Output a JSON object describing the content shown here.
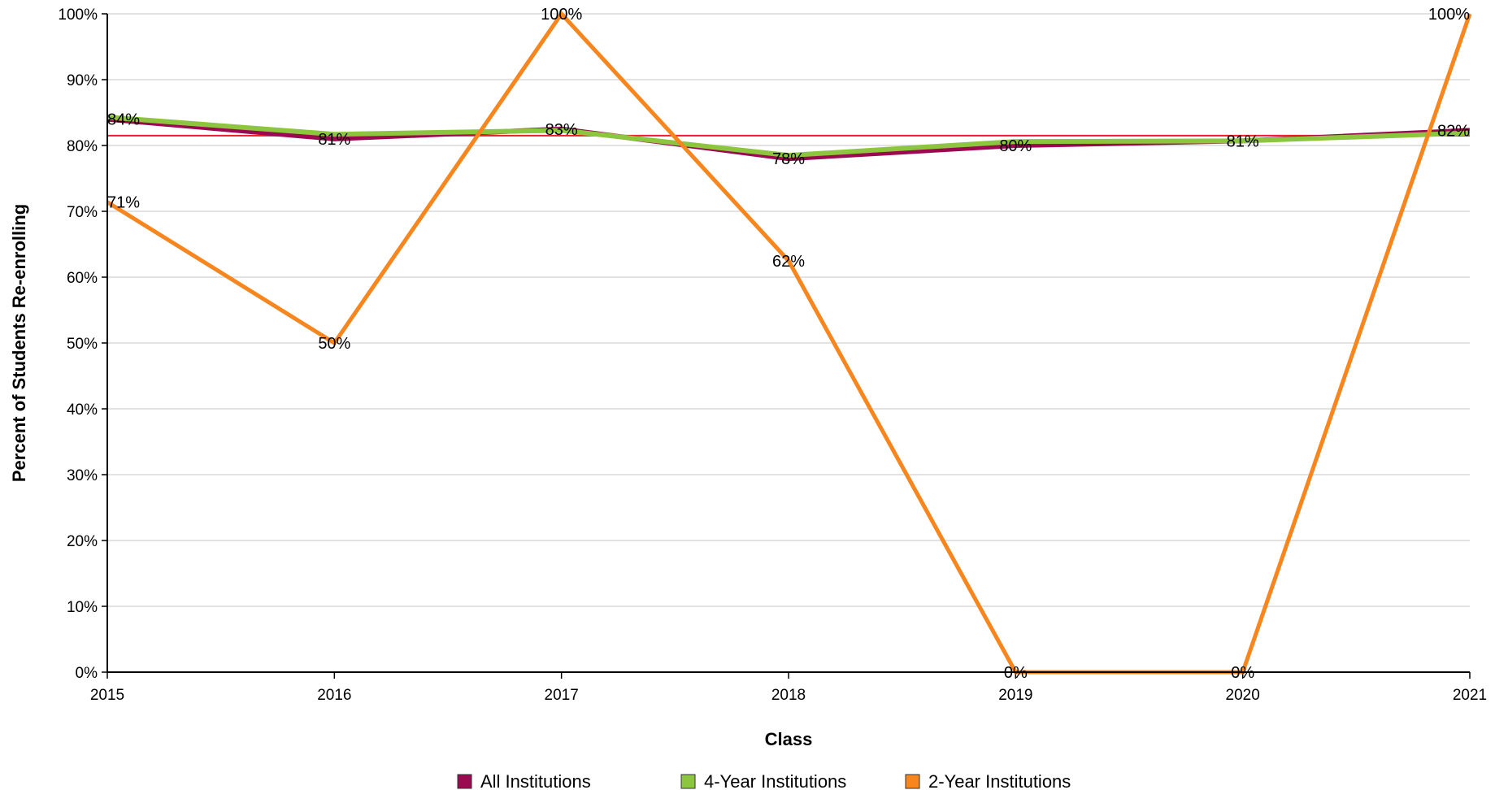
{
  "chart_data": {
    "type": "line",
    "title": "",
    "xlabel": "Class",
    "ylabel": "Percent of Students Re-enrolling",
    "x": [
      "2015",
      "2016",
      "2017",
      "2018",
      "2019",
      "2020",
      "2021"
    ],
    "yticks": [
      "0%",
      "10%",
      "20%",
      "30%",
      "40%",
      "50%",
      "60%",
      "70%",
      "80%",
      "90%",
      "100%"
    ],
    "ylim": [
      0,
      100
    ],
    "grid": true,
    "legend_position": "bottom",
    "reference_line": {
      "value": 81.5,
      "color": "#e8202a"
    },
    "series": [
      {
        "name": "All Institutions",
        "color": "#9b0a50",
        "values": [
          84,
          81,
          82.5,
          78,
          80,
          80.7,
          82.3
        ],
        "labels": [
          "84%",
          "81%",
          "83%",
          "78%",
          "80%",
          "81%",
          "82%"
        ]
      },
      {
        "name": "4-Year Institutions",
        "color": "#8cc63e",
        "values": [
          84.3,
          81.7,
          82.3,
          78.5,
          80.6,
          80.7,
          81.9
        ],
        "labels": []
      },
      {
        "name": "2-Year Institutions",
        "color": "#f7861e",
        "values": [
          71.4,
          50,
          100,
          62.5,
          0,
          0,
          100
        ],
        "labels": [
          "71%",
          "50%",
          "100%",
          "62%",
          "0%",
          "0%",
          "100%"
        ]
      }
    ]
  }
}
